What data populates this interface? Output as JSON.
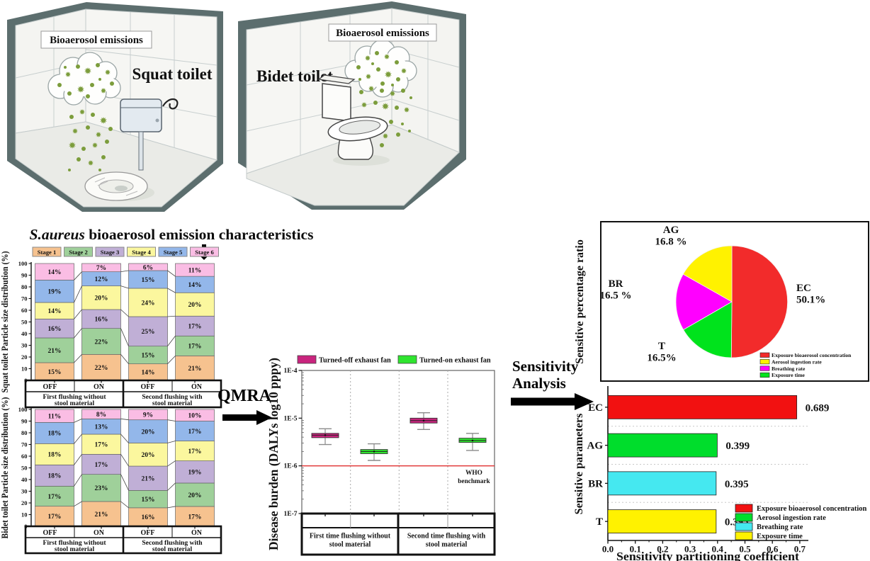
{
  "icons": {
    "arrow-down-icon": "▼",
    "arrow-right-icon": "➡",
    "bacteria-icon": "✳",
    "cloud-icon": "☁"
  },
  "scene": {
    "left_room": {
      "emission_label": "Bioaerosol emissions",
      "toilet_label": "Squat toilet"
    },
    "right_room": {
      "emission_label": "Bioaerosol emissions",
      "toilet_label": "Bidet toilet"
    }
  },
  "section_title": {
    "italic": "S.aureus",
    "rest": " bioaerosol emission characteristics"
  },
  "flow": {
    "qmra": "QMRA",
    "sensitivity_line1": "Sensitivity",
    "sensitivity_line2": "Analysis"
  },
  "chart_data": [
    {
      "id": "squat-stacked",
      "type": "bar",
      "stacked": true,
      "ylabel": "Squat toilet Particle size distribution (%)",
      "ylim": [
        0,
        100
      ],
      "yticks": [
        0,
        10,
        20,
        30,
        40,
        50,
        60,
        70,
        80,
        90,
        100
      ],
      "categories": [
        "OFF",
        "ON",
        "OFF",
        "ON"
      ],
      "group_labels": [
        [
          "First flushing without",
          "stool material"
        ],
        [
          "Second flushing with",
          "stool material"
        ]
      ],
      "legend": [
        {
          "label": "Stage 1",
          "color": "#F6C28F"
        },
        {
          "label": "Stage 2",
          "color": "#9FD09A"
        },
        {
          "label": "Stage 3",
          "color": "#C0AFD6"
        },
        {
          "label": "Stage 4",
          "color": "#FBF79E"
        },
        {
          "label": "Stage 5",
          "color": "#93B7EA"
        },
        {
          "label": "Stage 6",
          "color": "#FABDE4"
        }
      ],
      "series": [
        {
          "name": "Stage 1",
          "color": "#F6C28F",
          "values": [
            15,
            22,
            14,
            21
          ]
        },
        {
          "name": "Stage 2",
          "color": "#9FD09A",
          "values": [
            21,
            22,
            15,
            17
          ]
        },
        {
          "name": "Stage 3",
          "color": "#C0AFD6",
          "values": [
            16,
            16,
            25,
            17
          ]
        },
        {
          "name": "Stage 4",
          "color": "#FBF79E",
          "values": [
            14,
            20,
            24,
            20
          ]
        },
        {
          "name": "Stage 5",
          "color": "#93B7EA",
          "values": [
            19,
            12,
            15,
            14
          ]
        },
        {
          "name": "Stage 6",
          "color": "#FABDE4",
          "values": [
            14,
            7,
            6,
            11
          ]
        }
      ]
    },
    {
      "id": "bidet-stacked",
      "type": "bar",
      "stacked": true,
      "ylabel": "Bidet toilet Particle size distribution (%)",
      "ylim": [
        0,
        100
      ],
      "yticks": [
        0,
        10,
        20,
        30,
        40,
        50,
        60,
        70,
        80,
        90,
        100
      ],
      "categories": [
        "OFF",
        "ON",
        "OFF",
        "ON"
      ],
      "group_labels": [
        [
          "First flushing without",
          "stool material"
        ],
        [
          "Second flushing with",
          "stool material"
        ]
      ],
      "series": [
        {
          "name": "Stage 1",
          "color": "#F6C28F",
          "values": [
            17,
            21,
            16,
            17
          ]
        },
        {
          "name": "Stage 2",
          "color": "#9FD09A",
          "values": [
            17,
            23,
            15,
            20
          ]
        },
        {
          "name": "Stage 3",
          "color": "#C0AFD6",
          "values": [
            18,
            17,
            21,
            19
          ]
        },
        {
          "name": "Stage 4",
          "color": "#FBF79E",
          "values": [
            18,
            17,
            20,
            17
          ]
        },
        {
          "name": "Stage 5",
          "color": "#93B7EA",
          "values": [
            18,
            13,
            20,
            17
          ]
        },
        {
          "name": "Stage 6",
          "color": "#FABDE4",
          "values": [
            11,
            8,
            9,
            10
          ]
        }
      ]
    },
    {
      "id": "disease-burden-box",
      "type": "box",
      "ylabel": "Disease burden (DALYs log10 pppy)",
      "yticks": [
        "1E-4",
        "1E-5",
        "1E-6",
        "1E-7"
      ],
      "legend": [
        {
          "label": "Turned-off exhaust fan",
          "color": "#C9247E"
        },
        {
          "label": "Turned-on exhaust fan",
          "color": "#2FE52F"
        }
      ],
      "who_benchmark": {
        "value": 1e-06,
        "lines": [
          "WHO",
          "benchmark"
        ],
        "color": "#E03030"
      },
      "group_labels": [
        [
          "First time flushing without",
          "stool material"
        ],
        [
          "Second time flushing with",
          "stool material"
        ]
      ],
      "boxes": [
        {
          "series": "Turned-off exhaust fan",
          "low": 2.8e-06,
          "q1": 3.9e-06,
          "median": 4.4e-06,
          "q3": 4.8e-06,
          "high": 6e-06
        },
        {
          "series": "Turned-on exhaust fan",
          "low": 1.3e-06,
          "q1": 1.8e-06,
          "median": 2e-06,
          "q3": 2.2e-06,
          "high": 2.9e-06
        },
        {
          "series": "Turned-off exhaust fan",
          "low": 5.8e-06,
          "q1": 7.9e-06,
          "median": 8.9e-06,
          "q3": 1e-05,
          "high": 1.3e-05
        },
        {
          "series": "Turned-on exhaust fan",
          "low": 2.1e-06,
          "q1": 3.1e-06,
          "median": 3.4e-06,
          "q3": 3.8e-06,
          "high": 4.8e-06
        }
      ]
    },
    {
      "id": "sensitivity-pie",
      "type": "pie",
      "ylabel": "Sensitive percentage ratio",
      "slices": [
        {
          "label": "EC",
          "pct": 50.1,
          "pct_text": "50.1%",
          "color": "#F22B2B"
        },
        {
          "label": "T",
          "pct": 16.5,
          "pct_text": "16.5%",
          "color": "#00E31C"
        },
        {
          "label": "BR",
          "pct": 16.5,
          "pct_text": "16.5 %",
          "color": "#FF00FF"
        },
        {
          "label": "AG",
          "pct": 16.8,
          "pct_text": "16.8 %",
          "color": "#FFF200"
        }
      ],
      "legend": [
        {
          "label": "Exposure bioaerosol concentration",
          "color": "#F22B2B"
        },
        {
          "label": "Aerosol ingestion rate",
          "color": "#FFF200"
        },
        {
          "label": "Breathing rate",
          "color": "#FF00FF"
        },
        {
          "label": "Exposure time",
          "color": "#00E31C"
        }
      ]
    },
    {
      "id": "sensitivity-bars",
      "type": "bar-horizontal",
      "ylabel": "Sensitive parameters",
      "xlabel": "Sensitivity partitioning coefficient",
      "xlim": [
        0,
        0.7
      ],
      "xticks": [
        "0.0",
        "0.1",
        "0.2",
        "0.3",
        "0.4",
        "0.5",
        "0.6",
        "0.7"
      ],
      "categories": [
        "EC",
        "AG",
        "BR",
        "T"
      ],
      "values": [
        0.689,
        0.399,
        0.395,
        0.395
      ],
      "value_labels": [
        "0.689",
        "0.399",
        "0.395",
        "0.395"
      ],
      "colors": [
        "#F21111",
        "#00DD2C",
        "#45E8F0",
        "#FFF200"
      ],
      "legend": [
        {
          "label": "Exposure bioaerosol concentration",
          "color": "#F21111"
        },
        {
          "label": "Aerosol ingestion rate",
          "color": "#00DD2C"
        },
        {
          "label": "Breathing rate",
          "color": "#45E8F0"
        },
        {
          "label": "Exposure time",
          "color": "#FFF200"
        }
      ]
    }
  ]
}
